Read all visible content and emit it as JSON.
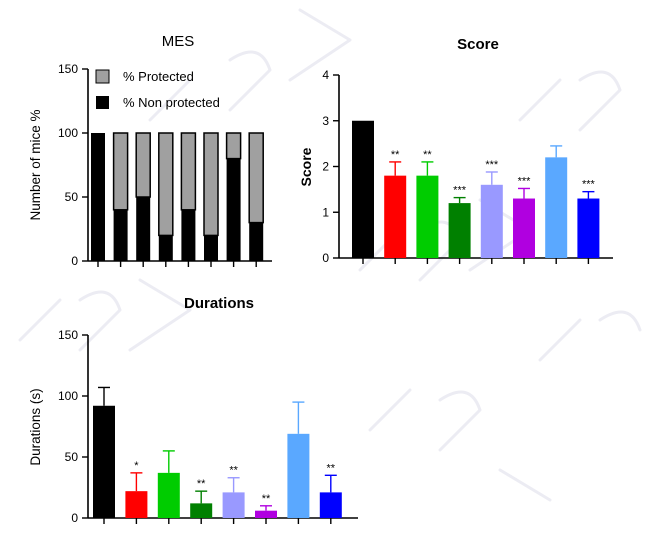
{
  "chart_data": [
    {
      "type": "bar",
      "stacked": true,
      "title": "MES",
      "ylabel": "Number of mice %",
      "ylim": [
        0,
        150
      ],
      "yticks": [
        0,
        50,
        100,
        150
      ],
      "legend": {
        "position": "top-right"
      },
      "series": [
        {
          "name": "% Protected",
          "color": "#a0a0a0",
          "values": [
            0,
            60,
            50,
            80,
            60,
            80,
            20,
            70
          ]
        },
        {
          "name": "% Non protected",
          "color": "#000000",
          "values": [
            100,
            40,
            50,
            20,
            40,
            20,
            80,
            30
          ]
        }
      ]
    },
    {
      "type": "bar",
      "title": "Score",
      "ylabel": "Score",
      "ylim": [
        0,
        4
      ],
      "yticks": [
        0,
        1,
        2,
        3,
        4
      ],
      "colors": [
        "#000000",
        "#ff0000",
        "#00cc00",
        "#008000",
        "#9999ff",
        "#b000e0",
        "#5aa8ff",
        "#0000ff"
      ],
      "values": [
        3.0,
        1.8,
        1.8,
        1.2,
        1.6,
        1.3,
        2.2,
        1.3
      ],
      "errors": [
        0,
        0.3,
        0.3,
        0.12,
        0.28,
        0.22,
        0.25,
        0.15
      ],
      "significance": [
        "",
        "**",
        "**",
        "***",
        "***",
        "***",
        "",
        "***"
      ]
    },
    {
      "type": "bar",
      "title": "Durations",
      "ylabel": "Durations (s)",
      "ylim": [
        0,
        150
      ],
      "yticks": [
        0,
        50,
        100,
        150
      ],
      "colors": [
        "#000000",
        "#ff0000",
        "#00cc00",
        "#008000",
        "#9999ff",
        "#b000e0",
        "#5aa8ff",
        "#0000ff"
      ],
      "values": [
        92,
        22,
        37,
        12,
        21,
        6,
        69,
        21
      ],
      "errors": [
        15,
        15,
        18,
        10,
        12,
        4,
        26,
        14
      ],
      "significance": [
        "",
        "*",
        "",
        "**",
        "**",
        "**",
        "",
        "**"
      ]
    }
  ]
}
